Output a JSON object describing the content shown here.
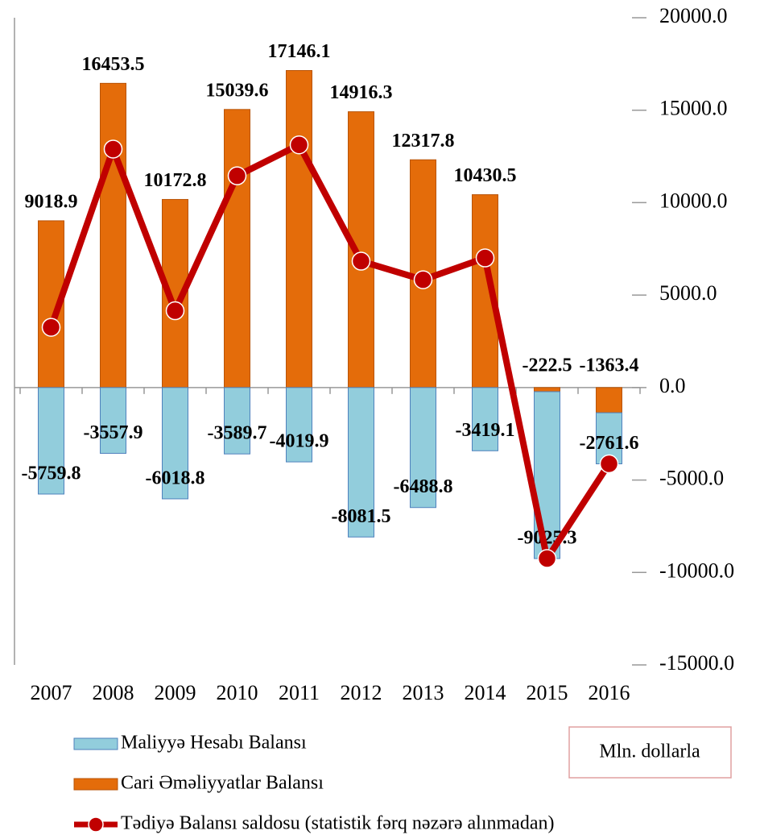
{
  "chart_data": {
    "type": "bar",
    "categories": [
      "2007",
      "2008",
      "2009",
      "2010",
      "2011",
      "2012",
      "2013",
      "2014",
      "2015",
      "2016"
    ],
    "series": [
      {
        "name": "Maliyyə Hesabı Balansı",
        "type": "bar",
        "color": "#92cddc",
        "values": [
          -5759.8,
          -3557.9,
          -6018.8,
          -3589.7,
          -4019.9,
          -8081.5,
          -6488.8,
          -3419.1,
          -9025.3,
          -2761.6
        ]
      },
      {
        "name": "Cari Əməliyyatlar Balansı",
        "type": "bar",
        "color": "#e46c0a",
        "values": [
          9018.9,
          16453.5,
          10172.8,
          15039.6,
          17146.1,
          14916.3,
          12317.8,
          10430.5,
          -222.5,
          -1363.4
        ]
      },
      {
        "name": "Tədiyə Balansı saldosu (statistik fərq nəzərə alınmadan)",
        "type": "line",
        "color": "#c00000",
        "values": [
          3259,
          12896,
          4154,
          11450,
          13126,
          6835,
          5829,
          7011,
          -9248,
          -4125
        ]
      }
    ],
    "stacked": true,
    "annotation": "Mln. dollarla",
    "ylim": [
      -15000,
      20000
    ],
    "yticks": [
      {
        "value": -15000,
        "label": "-15000.0"
      },
      {
        "value": -10000,
        "label": "-10000.0"
      },
      {
        "value": -5000,
        "label": "-5000.0"
      },
      {
        "value": 0,
        "label": "0.0"
      },
      {
        "value": 5000,
        "label": "5000.0"
      },
      {
        "value": 10000,
        "label": "10000.0"
      },
      {
        "value": 15000,
        "label": "15000.0"
      },
      {
        "value": 20000,
        "label": "20000.0"
      }
    ],
    "y_axis_side": "right",
    "grid": false
  }
}
